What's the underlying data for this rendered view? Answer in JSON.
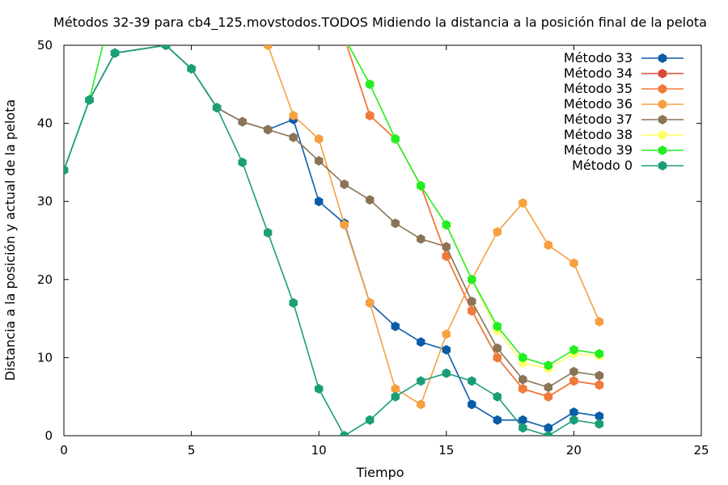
{
  "chart_data": {
    "type": "line",
    "title": "Métodos 32-39 para cb4_125.movstodos.TODOS Midiendo la distancia a la posición final de la pelota",
    "xlabel": "Tiempo",
    "ylabel": "Distancia a la posición y actual de la pelota",
    "xlim": [
      0,
      25
    ],
    "ylim": [
      0,
      50
    ],
    "xticks": [
      0,
      5,
      10,
      15,
      20,
      25
    ],
    "yticks": [
      0,
      10,
      20,
      30,
      40,
      50
    ],
    "grid": false,
    "legend_position": "top-right",
    "series": [
      {
        "name": "Método 33",
        "color": "#0a5ca8",
        "points": [
          [
            0,
            34
          ],
          [
            1,
            43
          ],
          [
            2,
            49
          ],
          [
            4,
            50
          ],
          [
            5,
            47
          ],
          [
            6,
            42
          ],
          [
            7,
            40.2
          ],
          [
            8,
            39.2
          ],
          [
            9,
            40.5
          ],
          [
            10,
            30
          ],
          [
            11,
            27.2
          ],
          [
            12,
            17
          ],
          [
            13,
            14
          ],
          [
            14,
            12
          ],
          [
            15,
            11
          ],
          [
            16,
            4
          ],
          [
            17,
            2
          ],
          [
            18,
            2
          ],
          [
            19,
            1
          ],
          [
            20,
            3
          ],
          [
            21,
            2.5
          ]
        ]
      },
      {
        "name": "Método 34",
        "color": "#d84a3a",
        "points": [
          [
            11,
            51
          ],
          [
            12,
            41
          ],
          [
            13,
            38
          ],
          [
            14,
            32
          ],
          [
            15,
            23
          ],
          [
            16,
            16
          ],
          [
            17,
            10
          ],
          [
            18,
            6
          ],
          [
            19,
            5
          ],
          [
            20,
            7
          ],
          [
            21,
            6.5
          ]
        ]
      },
      {
        "name": "Método 35",
        "color": "#f07a3a",
        "points": [
          [
            11,
            51
          ],
          [
            12,
            41
          ],
          [
            13,
            38
          ],
          [
            14,
            32
          ],
          [
            15,
            23
          ],
          [
            16,
            16
          ],
          [
            17,
            10
          ],
          [
            18,
            6
          ],
          [
            19,
            5
          ],
          [
            20,
            7
          ],
          [
            21,
            6.5
          ]
        ]
      },
      {
        "name": "Método 36",
        "color": "#f6a040",
        "points": [
          [
            8,
            50
          ],
          [
            9,
            41
          ],
          [
            10,
            38
          ],
          [
            11,
            27
          ],
          [
            12,
            17
          ],
          [
            13,
            6
          ],
          [
            14,
            4
          ],
          [
            15,
            13
          ],
          [
            16,
            20
          ],
          [
            17,
            26.1
          ],
          [
            18,
            29.8
          ],
          [
            19,
            24.4
          ],
          [
            20,
            22.1
          ],
          [
            21,
            14.6
          ]
        ]
      },
      {
        "name": "Método 37",
        "color": "#8b7355",
        "points": [
          [
            0,
            34
          ],
          [
            1,
            43
          ],
          [
            2,
            49
          ],
          [
            4,
            50
          ],
          [
            5,
            47
          ],
          [
            6,
            42
          ],
          [
            7,
            40.2
          ],
          [
            8,
            39.2
          ],
          [
            9,
            38.2
          ],
          [
            10,
            35.2
          ],
          [
            11,
            32.2
          ],
          [
            12,
            30.2
          ],
          [
            13,
            27.2
          ],
          [
            14,
            25.2
          ],
          [
            15,
            24.2
          ],
          [
            16,
            17.2
          ],
          [
            17,
            11.2
          ],
          [
            18,
            7.2
          ],
          [
            19,
            6.2
          ],
          [
            20,
            8.2
          ],
          [
            21,
            7.7
          ]
        ]
      },
      {
        "name": "Método 38",
        "color": "#ffff66",
        "points": [
          [
            11,
            51
          ],
          [
            12,
            45
          ],
          [
            13,
            38
          ],
          [
            14,
            32
          ],
          [
            15,
            27
          ],
          [
            16,
            20
          ],
          [
            17,
            13.5
          ],
          [
            18,
            9.3
          ],
          [
            19,
            8.6
          ],
          [
            20,
            10.5
          ],
          [
            21,
            10.2
          ]
        ]
      },
      {
        "name": "Método 39",
        "color": "#22ee22",
        "points": [
          [
            0,
            34
          ],
          [
            1,
            43
          ],
          [
            1.6,
            51
          ],
          [
            11,
            51
          ],
          [
            12,
            45
          ],
          [
            13,
            38
          ],
          [
            14,
            32
          ],
          [
            15,
            27
          ],
          [
            16,
            20
          ],
          [
            17,
            14
          ],
          [
            18,
            10
          ],
          [
            19,
            9
          ],
          [
            20,
            11
          ],
          [
            21,
            10.5
          ]
        ]
      },
      {
        "name": "Método 0",
        "color": "#1a9e77",
        "points": [
          [
            0,
            34
          ],
          [
            1,
            43
          ],
          [
            2,
            49
          ],
          [
            4,
            50
          ],
          [
            5,
            47
          ],
          [
            6,
            42
          ],
          [
            7,
            35
          ],
          [
            8,
            26
          ],
          [
            9,
            17
          ],
          [
            10,
            6
          ],
          [
            11,
            0
          ],
          [
            12,
            2
          ],
          [
            13,
            5
          ],
          [
            14,
            7
          ],
          [
            15,
            8
          ],
          [
            16,
            7
          ],
          [
            17,
            5
          ],
          [
            18,
            1
          ],
          [
            19,
            0
          ],
          [
            20,
            2
          ],
          [
            21,
            1.5
          ]
        ]
      }
    ]
  }
}
